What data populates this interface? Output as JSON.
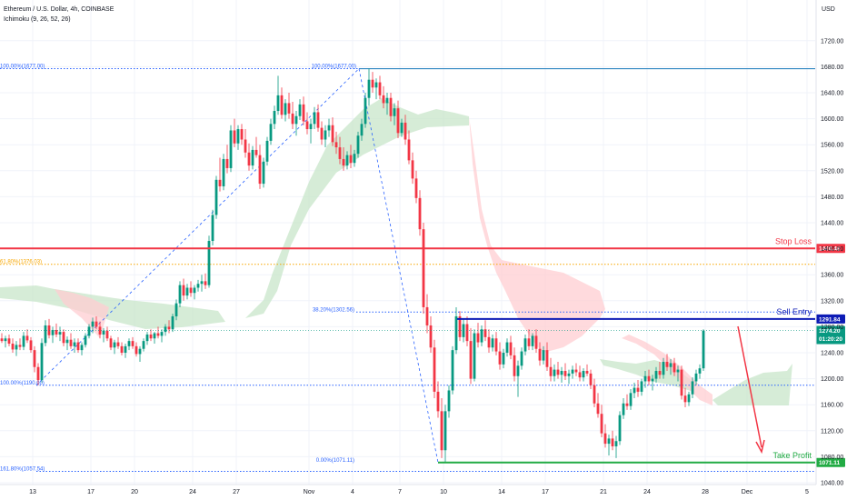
{
  "header": {
    "title": "Ethereum / U.S. Dollar, 4h, COINBASE",
    "indicator": "Ichimoku (9, 26, 52, 26)"
  },
  "chart_data": {
    "type": "candlestick",
    "currency_label": "USD",
    "y_ticks": [
      1040,
      1080,
      1120,
      1160,
      1200,
      1240,
      1280,
      1320,
      1360,
      1400,
      1440,
      1480,
      1520,
      1560,
      1600,
      1640,
      1680,
      1720
    ],
    "ylim": [
      1027,
      1750
    ],
    "x_ticks": [
      {
        "label": "13",
        "x": 36
      },
      {
        "label": "17",
        "x": 100
      },
      {
        "label": "20",
        "x": 148
      },
      {
        "label": "24",
        "x": 212
      },
      {
        "label": "27",
        "x": 260
      },
      {
        "label": "Nov",
        "x": 340
      },
      {
        "label": "4",
        "x": 388
      },
      {
        "label": "7",
        "x": 440
      },
      {
        "label": "10",
        "x": 488
      },
      {
        "label": "14",
        "x": 552
      },
      {
        "label": "17",
        "x": 600
      },
      {
        "label": "21",
        "x": 664
      },
      {
        "label": "24",
        "x": 712
      },
      {
        "label": "28",
        "x": 776
      },
      {
        "label": "Dec",
        "x": 822
      },
      {
        "label": "5",
        "x": 888
      }
    ],
    "fib_levels": [
      {
        "label": "100.00%(1677.00)",
        "value": 1677.0,
        "color": "#2962ff"
      },
      {
        "label": "0.00%(1071.11)",
        "value": 1071.11,
        "color": "#2962ff"
      },
      {
        "label": "38.20%(1302.56)",
        "value": 1302.56,
        "color": "#2962ff"
      },
      {
        "label": "61.80%(1376.03)",
        "value": 1376.03,
        "color": "#f7a600"
      },
      {
        "label": "100.00%(1190.00)",
        "value": 1190.0,
        "color": "#2962ff"
      },
      {
        "label": "161.80%(1057.54)",
        "value": 1057.54,
        "color": "#2962ff"
      }
    ],
    "levels": [
      {
        "name": "Stop Loss",
        "value": 1400.48,
        "price_label": "1400.48",
        "color": "#f23645"
      },
      {
        "name": "Sell Entry",
        "value": 1291.84,
        "price_label": "1291.84",
        "color": "#0d1bb5"
      },
      {
        "name": "Take Profit",
        "value": 1071.11,
        "price_label": "1071.11",
        "color": "#22ab44"
      }
    ],
    "current_price": {
      "value": 1274.2,
      "label": "1274.20",
      "countdown": "01:20:20",
      "color": "#089981"
    },
    "candles": [
      [
        1262,
        1270,
        1255,
        1258
      ],
      [
        1258,
        1266,
        1248,
        1262
      ],
      [
        1262,
        1268,
        1250,
        1254
      ],
      [
        1254,
        1262,
        1240,
        1245
      ],
      [
        1245,
        1258,
        1235,
        1252
      ],
      [
        1252,
        1262,
        1244,
        1249
      ],
      [
        1249,
        1272,
        1244,
        1266
      ],
      [
        1266,
        1276,
        1255,
        1259
      ],
      [
        1259,
        1264,
        1240,
        1244
      ],
      [
        1244,
        1250,
        1210,
        1218
      ],
      [
        1218,
        1224,
        1190,
        1198
      ],
      [
        1198,
        1262,
        1194,
        1255
      ],
      [
        1255,
        1290,
        1250,
        1282
      ],
      [
        1282,
        1292,
        1262,
        1267
      ],
      [
        1267,
        1280,
        1255,
        1275
      ],
      [
        1275,
        1285,
        1264,
        1268
      ],
      [
        1268,
        1280,
        1258,
        1272
      ],
      [
        1272,
        1276,
        1250,
        1255
      ],
      [
        1255,
        1265,
        1244,
        1260
      ],
      [
        1260,
        1270,
        1246,
        1250
      ],
      [
        1250,
        1262,
        1240,
        1256
      ],
      [
        1256,
        1262,
        1240,
        1244
      ],
      [
        1244,
        1256,
        1236,
        1252
      ],
      [
        1252,
        1270,
        1248,
        1266
      ],
      [
        1266,
        1284,
        1262,
        1280
      ],
      [
        1280,
        1294,
        1270,
        1288
      ],
      [
        1288,
        1296,
        1276,
        1280
      ],
      [
        1280,
        1288,
        1262,
        1268
      ],
      [
        1268,
        1278,
        1256,
        1274
      ],
      [
        1274,
        1280,
        1258,
        1262
      ],
      [
        1262,
        1266,
        1244,
        1248
      ],
      [
        1248,
        1260,
        1238,
        1256
      ],
      [
        1256,
        1264,
        1246,
        1250
      ],
      [
        1250,
        1256,
        1236,
        1240
      ],
      [
        1240,
        1254,
        1232,
        1250
      ],
      [
        1250,
        1262,
        1244,
        1258
      ],
      [
        1258,
        1264,
        1246,
        1250
      ],
      [
        1250,
        1256,
        1234,
        1238
      ],
      [
        1238,
        1250,
        1226,
        1246
      ],
      [
        1246,
        1262,
        1242,
        1258
      ],
      [
        1258,
        1272,
        1252,
        1268
      ],
      [
        1268,
        1276,
        1258,
        1262
      ],
      [
        1262,
        1272,
        1254,
        1270
      ],
      [
        1270,
        1280,
        1262,
        1266
      ],
      [
        1266,
        1276,
        1256,
        1272
      ],
      [
        1272,
        1284,
        1266,
        1280
      ],
      [
        1280,
        1290,
        1270,
        1276
      ],
      [
        1276,
        1300,
        1272,
        1296
      ],
      [
        1296,
        1322,
        1290,
        1316
      ],
      [
        1316,
        1350,
        1310,
        1344
      ],
      [
        1344,
        1354,
        1320,
        1328
      ],
      [
        1328,
        1346,
        1322,
        1340
      ],
      [
        1340,
        1350,
        1326,
        1332
      ],
      [
        1332,
        1344,
        1322,
        1340
      ],
      [
        1340,
        1352,
        1334,
        1346
      ],
      [
        1346,
        1360,
        1334,
        1350
      ],
      [
        1350,
        1362,
        1338,
        1344
      ],
      [
        1344,
        1420,
        1340,
        1412
      ],
      [
        1412,
        1460,
        1405,
        1452
      ],
      [
        1452,
        1512,
        1446,
        1506
      ],
      [
        1506,
        1540,
        1488,
        1496
      ],
      [
        1496,
        1546,
        1490,
        1538
      ],
      [
        1538,
        1560,
        1516,
        1524
      ],
      [
        1524,
        1590,
        1518,
        1582
      ],
      [
        1582,
        1600,
        1556,
        1562
      ],
      [
        1562,
        1590,
        1552,
        1584
      ],
      [
        1584,
        1592,
        1560,
        1568
      ],
      [
        1568,
        1584,
        1540,
        1548
      ],
      [
        1548,
        1562,
        1520,
        1528
      ],
      [
        1528,
        1558,
        1522,
        1552
      ],
      [
        1552,
        1572,
        1540,
        1544
      ],
      [
        1544,
        1560,
        1492,
        1500
      ],
      [
        1500,
        1540,
        1494,
        1534
      ],
      [
        1534,
        1572,
        1528,
        1566
      ],
      [
        1566,
        1600,
        1560,
        1592
      ],
      [
        1592,
        1620,
        1584,
        1612
      ],
      [
        1612,
        1666,
        1606,
        1636
      ],
      [
        1636,
        1648,
        1600,
        1606
      ],
      [
        1606,
        1630,
        1596,
        1624
      ],
      [
        1624,
        1640,
        1600,
        1608
      ],
      [
        1608,
        1626,
        1584,
        1592
      ],
      [
        1592,
        1612,
        1574,
        1604
      ],
      [
        1604,
        1630,
        1598,
        1622
      ],
      [
        1622,
        1634,
        1590,
        1596
      ],
      [
        1596,
        1610,
        1576,
        1584
      ],
      [
        1584,
        1600,
        1562,
        1592
      ],
      [
        1592,
        1618,
        1584,
        1610
      ],
      [
        1610,
        1622,
        1580,
        1586
      ],
      [
        1586,
        1596,
        1560,
        1568
      ],
      [
        1568,
        1590,
        1556,
        1582
      ],
      [
        1582,
        1600,
        1572,
        1590
      ],
      [
        1590,
        1602,
        1558,
        1564
      ],
      [
        1564,
        1580,
        1546,
        1556
      ],
      [
        1556,
        1572,
        1530,
        1538
      ],
      [
        1538,
        1556,
        1520,
        1528
      ],
      [
        1528,
        1550,
        1522,
        1544
      ],
      [
        1544,
        1560,
        1524,
        1532
      ],
      [
        1532,
        1552,
        1526,
        1546
      ],
      [
        1546,
        1580,
        1540,
        1574
      ],
      [
        1574,
        1600,
        1566,
        1592
      ],
      [
        1592,
        1640,
        1586,
        1632
      ],
      [
        1632,
        1677,
        1620,
        1660
      ],
      [
        1660,
        1672,
        1640,
        1648
      ],
      [
        1648,
        1662,
        1630,
        1656
      ],
      [
        1656,
        1666,
        1630,
        1636
      ],
      [
        1636,
        1650,
        1616,
        1624
      ],
      [
        1624,
        1640,
        1606,
        1632
      ],
      [
        1632,
        1640,
        1596,
        1604
      ],
      [
        1604,
        1624,
        1590,
        1616
      ],
      [
        1616,
        1628,
        1570,
        1578
      ],
      [
        1578,
        1600,
        1572,
        1594
      ],
      [
        1594,
        1606,
        1560,
        1568
      ],
      [
        1568,
        1582,
        1530,
        1536
      ],
      [
        1536,
        1548,
        1500,
        1508
      ],
      [
        1508,
        1520,
        1470,
        1478
      ],
      [
        1478,
        1490,
        1420,
        1430
      ],
      [
        1430,
        1440,
        1300,
        1310
      ],
      [
        1310,
        1330,
        1270,
        1282
      ],
      [
        1282,
        1296,
        1240,
        1248
      ],
      [
        1248,
        1260,
        1170,
        1180
      ],
      [
        1180,
        1196,
        1140,
        1150
      ],
      [
        1150,
        1170,
        1078,
        1090
      ],
      [
        1090,
        1160,
        1072,
        1150
      ],
      [
        1150,
        1190,
        1140,
        1182
      ],
      [
        1182,
        1250,
        1176,
        1244
      ],
      [
        1244,
        1310,
        1238,
        1296
      ],
      [
        1296,
        1304,
        1258,
        1264
      ],
      [
        1264,
        1292,
        1256,
        1284
      ],
      [
        1284,
        1296,
        1250,
        1258
      ],
      [
        1258,
        1278,
        1192,
        1200
      ],
      [
        1200,
        1276,
        1196,
        1270
      ],
      [
        1270,
        1286,
        1248,
        1256
      ],
      [
        1256,
        1282,
        1250,
        1276
      ],
      [
        1276,
        1290,
        1258,
        1264
      ],
      [
        1264,
        1276,
        1240,
        1248
      ],
      [
        1248,
        1268,
        1242,
        1262
      ],
      [
        1262,
        1272,
        1236,
        1242
      ],
      [
        1242,
        1256,
        1214,
        1222
      ],
      [
        1222,
        1246,
        1216,
        1240
      ],
      [
        1240,
        1262,
        1234,
        1256
      ],
      [
        1256,
        1266,
        1230,
        1236
      ],
      [
        1236,
        1248,
        1196,
        1204
      ],
      [
        1204,
        1228,
        1172,
        1220
      ],
      [
        1220,
        1248,
        1214,
        1242
      ],
      [
        1242,
        1268,
        1236,
        1262
      ],
      [
        1262,
        1276,
        1244,
        1250
      ],
      [
        1250,
        1270,
        1244,
        1266
      ],
      [
        1266,
        1276,
        1240,
        1246
      ],
      [
        1246,
        1256,
        1220,
        1228
      ],
      [
        1228,
        1250,
        1222,
        1244
      ],
      [
        1244,
        1256,
        1212,
        1218
      ],
      [
        1218,
        1232,
        1196,
        1204
      ],
      [
        1204,
        1222,
        1196,
        1214
      ],
      [
        1214,
        1226,
        1200,
        1206
      ],
      [
        1206,
        1218,
        1194,
        1212
      ],
      [
        1212,
        1224,
        1198,
        1204
      ],
      [
        1204,
        1214,
        1192,
        1208
      ],
      [
        1208,
        1220,
        1200,
        1214
      ],
      [
        1214,
        1224,
        1204,
        1210
      ],
      [
        1210,
        1220,
        1196,
        1202
      ],
      [
        1202,
        1216,
        1196,
        1212
      ],
      [
        1212,
        1222,
        1204,
        1208
      ],
      [
        1208,
        1214,
        1184,
        1190
      ],
      [
        1190,
        1200,
        1156,
        1162
      ],
      [
        1162,
        1178,
        1140,
        1146
      ],
      [
        1146,
        1160,
        1110,
        1116
      ],
      [
        1116,
        1130,
        1094,
        1100
      ],
      [
        1100,
        1114,
        1082,
        1108
      ],
      [
        1108,
        1120,
        1090,
        1096
      ],
      [
        1096,
        1112,
        1078,
        1104
      ],
      [
        1104,
        1150,
        1098,
        1144
      ],
      [
        1144,
        1170,
        1138,
        1162
      ],
      [
        1162,
        1176,
        1152,
        1158
      ],
      [
        1158,
        1184,
        1152,
        1178
      ],
      [
        1178,
        1194,
        1170,
        1186
      ],
      [
        1186,
        1198,
        1172,
        1180
      ],
      [
        1180,
        1200,
        1174,
        1196
      ],
      [
        1196,
        1212,
        1186,
        1204
      ],
      [
        1204,
        1214,
        1190,
        1196
      ],
      [
        1196,
        1206,
        1182,
        1200
      ],
      [
        1200,
        1218,
        1194,
        1212
      ],
      [
        1212,
        1226,
        1200,
        1206
      ],
      [
        1206,
        1232,
        1200,
        1226
      ],
      [
        1226,
        1238,
        1212,
        1218
      ],
      [
        1218,
        1230,
        1206,
        1224
      ],
      [
        1224,
        1232,
        1204,
        1210
      ],
      [
        1210,
        1220,
        1196,
        1214
      ],
      [
        1214,
        1220,
        1168,
        1174
      ],
      [
        1174,
        1186,
        1156,
        1164
      ],
      [
        1164,
        1180,
        1158,
        1176
      ],
      [
        1176,
        1202,
        1170,
        1196
      ],
      [
        1196,
        1214,
        1190,
        1208
      ],
      [
        1208,
        1222,
        1200,
        1216
      ],
      [
        1216,
        1276,
        1212,
        1274
      ]
    ]
  },
  "annotations": {
    "stop_loss": "Stop Loss",
    "sell_entry": "Sell Entry",
    "take_profit": "Take Profit"
  },
  "colors": {
    "up": "#089981",
    "down": "#f23645",
    "cloud_bull": "#c8e6c9",
    "cloud_bear": "#ffcdd2",
    "grid": "#f0f3fa"
  }
}
